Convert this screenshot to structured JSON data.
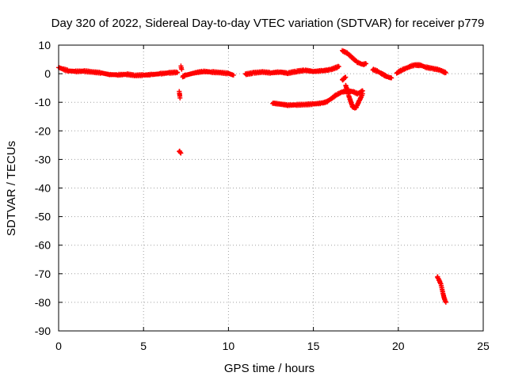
{
  "chart_data": {
    "type": "scatter",
    "title": "Day 320 of 2022, Sidereal Day-to-day VTEC variation (SDTVAR) for receiver p779",
    "xlabel": "GPS time / hours",
    "ylabel": "SDTVAR / TECUs",
    "xlim": [
      0,
      25
    ],
    "ylim": [
      -90,
      10
    ],
    "xticks": [
      0,
      5,
      10,
      15,
      20,
      25
    ],
    "yticks": [
      10,
      0,
      -10,
      -20,
      -30,
      -40,
      -50,
      -60,
      -70,
      -80,
      -90
    ],
    "grid": true,
    "marker": "+",
    "marker_color": "#ff0000",
    "series": [
      {
        "name": "p779",
        "segments": [
          [
            [
              0.0,
              2.2
            ],
            [
              0.3,
              1.5
            ],
            [
              0.6,
              1.0
            ],
            [
              1.0,
              0.8
            ],
            [
              1.5,
              0.9
            ],
            [
              2.0,
              0.6
            ],
            [
              2.5,
              0.3
            ],
            [
              3.0,
              -0.3
            ],
            [
              3.5,
              -0.4
            ],
            [
              4.0,
              -0.2
            ],
            [
              4.5,
              -0.6
            ],
            [
              5.0,
              -0.5
            ],
            [
              5.5,
              -0.3
            ],
            [
              6.0,
              0.0
            ],
            [
              6.5,
              0.3
            ],
            [
              7.0,
              0.5
            ]
          ],
          [
            [
              7.2,
              2.5
            ],
            [
              7.25,
              1.5
            ]
          ],
          [
            [
              7.3,
              -1.0
            ],
            [
              7.5,
              -0.5
            ],
            [
              8.0,
              0.3
            ],
            [
              8.5,
              0.8
            ],
            [
              9.0,
              0.6
            ],
            [
              9.5,
              0.4
            ],
            [
              10.0,
              0.1
            ],
            [
              10.3,
              -0.5
            ]
          ],
          [
            [
              11.0,
              -0.2
            ],
            [
              11.5,
              0.3
            ],
            [
              12.0,
              0.6
            ],
            [
              12.5,
              0.3
            ],
            [
              13.0,
              0.6
            ],
            [
              13.5,
              0.2
            ],
            [
              14.0,
              0.8
            ],
            [
              14.5,
              1.2
            ],
            [
              15.0,
              0.8
            ],
            [
              15.5,
              1.0
            ],
            [
              16.0,
              1.4
            ],
            [
              16.5,
              2.5
            ]
          ],
          [
            [
              7.1,
              -6.0
            ],
            [
              7.15,
              -8.5
            ]
          ],
          [
            [
              7.1,
              -27.0
            ],
            [
              7.2,
              -27.8
            ]
          ],
          [
            [
              12.6,
              -10.3
            ],
            [
              13.0,
              -10.6
            ],
            [
              13.5,
              -11.0
            ],
            [
              14.0,
              -10.9
            ],
            [
              14.5,
              -10.8
            ],
            [
              15.0,
              -10.6
            ],
            [
              15.5,
              -10.3
            ],
            [
              15.8,
              -9.8
            ],
            [
              16.1,
              -8.5
            ],
            [
              16.4,
              -7.2
            ],
            [
              16.7,
              -6.4
            ],
            [
              17.0,
              -6.0
            ],
            [
              17.3,
              -6.2
            ],
            [
              17.6,
              -7.0
            ],
            [
              17.9,
              -6.0
            ]
          ],
          [
            [
              16.9,
              -4.0
            ],
            [
              17.1,
              -8.0
            ],
            [
              17.3,
              -11.5
            ],
            [
              17.5,
              -12.0
            ],
            [
              17.7,
              -9.5
            ],
            [
              17.9,
              -7.0
            ]
          ],
          [
            [
              16.7,
              -2.2
            ],
            [
              16.9,
              -1.2
            ]
          ],
          [
            [
              16.7,
              8.0
            ],
            [
              17.0,
              7.2
            ],
            [
              17.3,
              5.5
            ],
            [
              17.6,
              4.0
            ],
            [
              17.9,
              3.2
            ],
            [
              18.1,
              3.5
            ]
          ],
          [
            [
              18.5,
              1.5
            ],
            [
              18.8,
              0.8
            ],
            [
              19.1,
              -0.3
            ],
            [
              19.4,
              -1.2
            ],
            [
              19.6,
              -1.5
            ]
          ],
          [
            [
              19.9,
              0.2
            ],
            [
              20.2,
              1.3
            ],
            [
              20.5,
              2.0
            ],
            [
              20.8,
              2.8
            ],
            [
              21.0,
              3.0
            ],
            [
              21.3,
              3.0
            ],
            [
              21.6,
              2.3
            ],
            [
              22.0,
              1.8
            ],
            [
              22.4,
              1.4
            ],
            [
              22.8,
              0.3
            ]
          ],
          [
            [
              22.3,
              -71.0
            ],
            [
              22.5,
              -73.5
            ],
            [
              22.6,
              -76.0
            ],
            [
              22.7,
              -78.5
            ],
            [
              22.8,
              -80.0
            ]
          ]
        ]
      }
    ]
  }
}
